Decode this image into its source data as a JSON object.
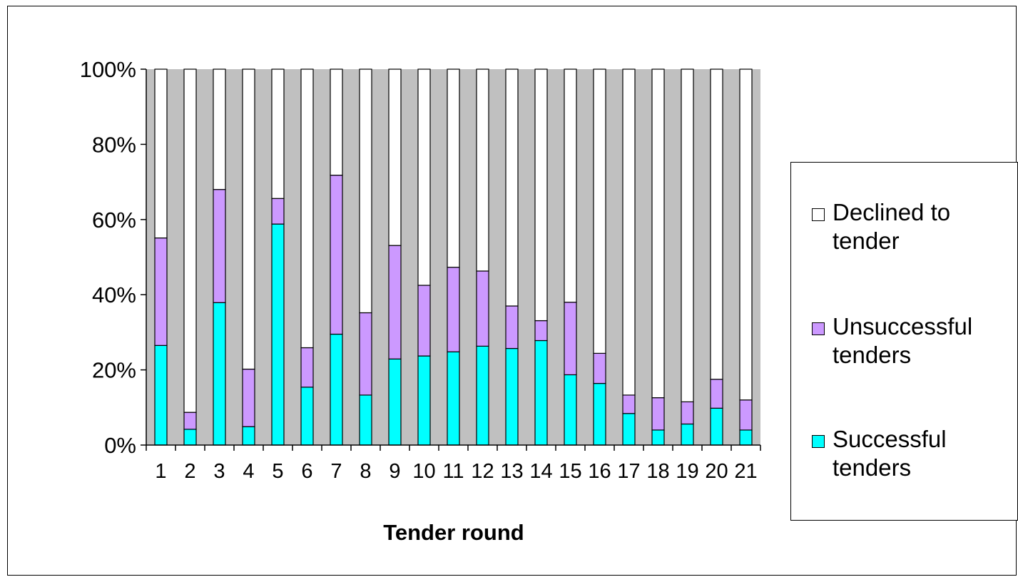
{
  "chart_data": {
    "type": "stacked-bar-100",
    "xlabel": "Tender round",
    "ylabel": "",
    "categories": [
      "1",
      "2",
      "3",
      "4",
      "5",
      "6",
      "7",
      "8",
      "9",
      "10",
      "11",
      "12",
      "13",
      "14",
      "15",
      "16",
      "17",
      "18",
      "19",
      "20",
      "21"
    ],
    "y_ticks": [
      "0%",
      "20%",
      "40%",
      "60%",
      "80%",
      "100%"
    ],
    "ylim": [
      0,
      100
    ],
    "grid": false,
    "plot_background": "#c0c0c0",
    "legend_position": "right",
    "series": [
      {
        "name": "Successful tenders",
        "color": "#00ffff",
        "values": [
          26.5,
          4.2,
          37.9,
          4.9,
          58.8,
          15.4,
          29.5,
          13.3,
          22.9,
          23.7,
          24.8,
          26.3,
          25.7,
          27.8,
          18.7,
          16.4,
          8.4,
          4.0,
          5.6,
          9.8,
          4.0
        ]
      },
      {
        "name": "Unsuccessful tenders",
        "color": "#cc99ff",
        "values": [
          28.6,
          4.5,
          30.1,
          15.3,
          6.8,
          10.5,
          42.3,
          21.9,
          30.2,
          18.8,
          22.5,
          20.0,
          11.3,
          5.3,
          19.3,
          8.0,
          4.9,
          8.6,
          5.9,
          7.7,
          8.0
        ]
      },
      {
        "name": "Declined to tender",
        "color": "#ffffff",
        "values": [
          44.9,
          91.3,
          32.0,
          79.8,
          34.4,
          74.1,
          28.2,
          64.8,
          46.9,
          57.5,
          52.7,
          53.7,
          63.0,
          66.9,
          62.0,
          75.6,
          86.7,
          87.4,
          88.5,
          82.5,
          88.0
        ]
      }
    ],
    "legend": [
      {
        "label": "Declined to tender",
        "color": "#ffffff"
      },
      {
        "label": "Unsuccessful tenders",
        "color": "#cc99ff"
      },
      {
        "label": "Successful tenders",
        "color": "#00ffff"
      }
    ]
  }
}
